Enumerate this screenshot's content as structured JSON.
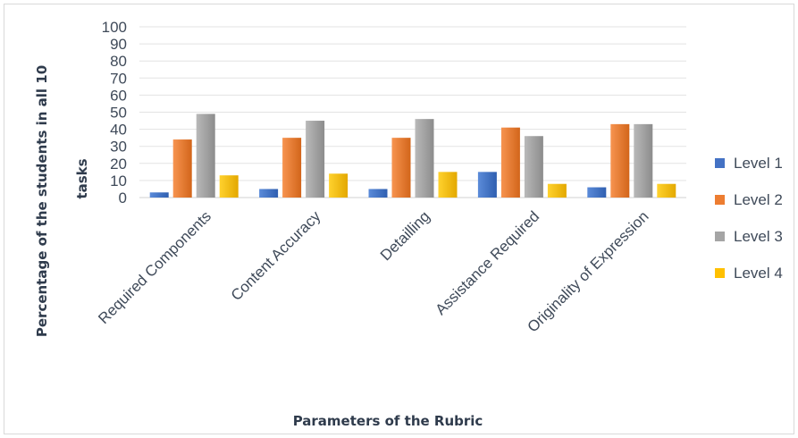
{
  "chart_data": {
    "type": "bar",
    "xlabel": "Parameters of the Rubric",
    "ylabel": "Percentage of the students in all 10 tasks",
    "ylim": [
      0,
      100
    ],
    "yticks": [
      0,
      10,
      20,
      30,
      40,
      50,
      60,
      70,
      80,
      90,
      100
    ],
    "grid": true,
    "legend_position": "right",
    "categories": [
      "Required Components",
      "Content Accuracy",
      "Detailling",
      "Assistance Required",
      "Originality of Expression"
    ],
    "series": [
      {
        "name": "Level 1",
        "color": "#4472c4",
        "values": [
          3,
          5,
          5,
          15,
          6
        ]
      },
      {
        "name": "Level 2",
        "color": "#ed7d31",
        "values": [
          34,
          35,
          35,
          41,
          43
        ]
      },
      {
        "name": "Level 3",
        "color": "#a5a5a5",
        "values": [
          49,
          45,
          46,
          36,
          43
        ]
      },
      {
        "name": "Level 4",
        "color": "#ffc000",
        "values": [
          13,
          14,
          15,
          8,
          8
        ]
      }
    ]
  }
}
